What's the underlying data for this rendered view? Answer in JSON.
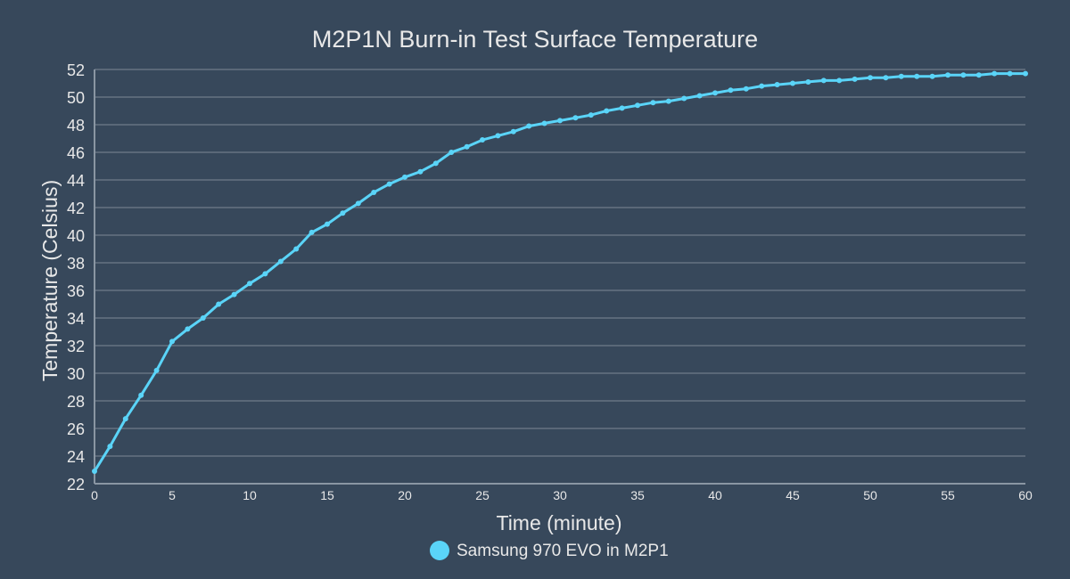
{
  "chart_data": {
    "type": "line",
    "title": "M2P1N Burn-in Test Surface Temperature",
    "xlabel": "Time (minute)",
    "ylabel": "Temperature (Celsius)",
    "xlim": [
      0,
      60
    ],
    "ylim": [
      22,
      52
    ],
    "xticks": [
      0,
      5,
      10,
      15,
      20,
      25,
      30,
      35,
      40,
      45,
      50,
      55,
      60
    ],
    "yticks": [
      22,
      24,
      26,
      28,
      30,
      32,
      34,
      36,
      38,
      40,
      42,
      44,
      46,
      48,
      50,
      52
    ],
    "grid": true,
    "legend_position": "bottom",
    "colors": {
      "background": "#37485b",
      "line": "#5ad4f8",
      "grid": "#5a6878",
      "text": "#e8e8e8"
    },
    "series": [
      {
        "name": "Samsung 970 EVO in M2P1",
        "x": [
          0,
          1,
          2,
          3,
          4,
          5,
          6,
          7,
          8,
          9,
          10,
          11,
          12,
          13,
          14,
          15,
          16,
          17,
          18,
          19,
          20,
          21,
          22,
          23,
          24,
          25,
          26,
          27,
          28,
          29,
          30,
          31,
          32,
          33,
          34,
          35,
          36,
          37,
          38,
          39,
          40,
          41,
          42,
          43,
          44,
          45,
          46,
          47,
          48,
          49,
          50,
          51,
          52,
          53,
          54,
          55,
          56,
          57,
          58,
          59,
          60
        ],
        "values": [
          22.9,
          24.7,
          26.7,
          28.4,
          30.2,
          32.3,
          33.2,
          34.0,
          35.0,
          35.7,
          36.5,
          37.2,
          38.1,
          39.0,
          40.2,
          40.8,
          41.6,
          42.3,
          43.1,
          43.7,
          44.2,
          44.6,
          45.2,
          46.0,
          46.4,
          46.9,
          47.2,
          47.5,
          47.9,
          48.1,
          48.3,
          48.5,
          48.7,
          49.0,
          49.2,
          49.4,
          49.6,
          49.7,
          49.9,
          50.1,
          50.3,
          50.5,
          50.6,
          50.8,
          50.9,
          51.0,
          51.1,
          51.2,
          51.2,
          51.3,
          51.4,
          51.4,
          51.5,
          51.5,
          51.5,
          51.6,
          51.6,
          51.6,
          51.7,
          51.7,
          51.7
        ]
      }
    ]
  }
}
